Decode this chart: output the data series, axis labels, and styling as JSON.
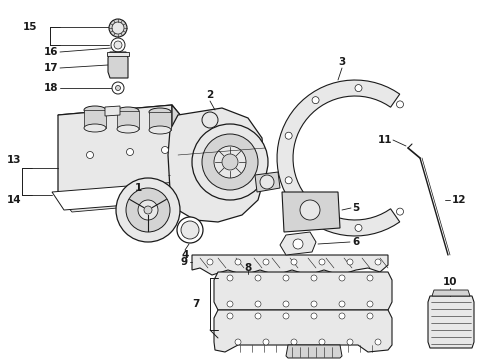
{
  "bg": "#ffffff",
  "lc": "#1a1a1a",
  "fc_light": "#e8e8e8",
  "fc_mid": "#d4d4d4",
  "fc_white": "#ffffff",
  "lw_main": 0.9,
  "lw_thin": 0.5,
  "lw_leader": 0.7,
  "fs_label": 7.5,
  "fig_w": 4.89,
  "fig_h": 3.6,
  "dpi": 100
}
